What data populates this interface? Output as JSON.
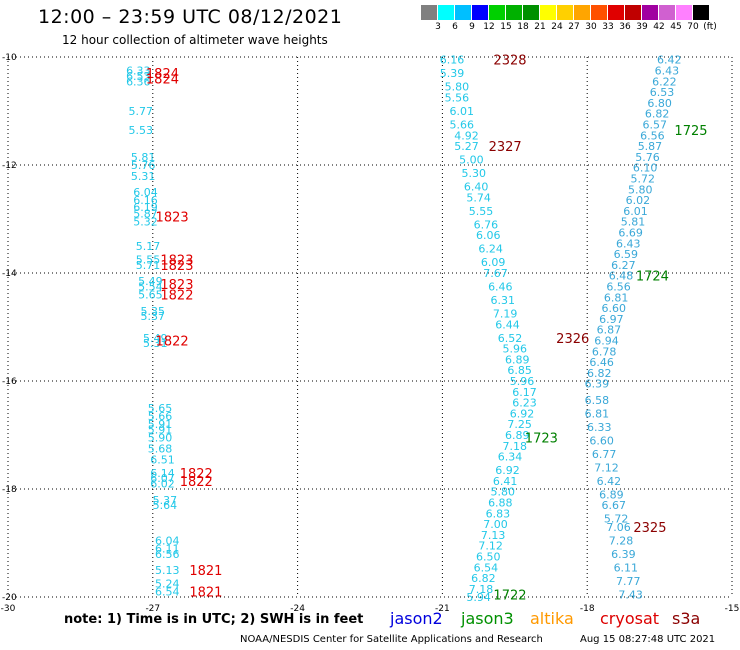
{
  "header": {
    "title": "12:00 – 23:59 UTC 08/12/2021",
    "subtitle": "12 hour collection of altimeter wave heights"
  },
  "colorbar": {
    "colors": [
      "#808080",
      "#00ffff",
      "#00bfff",
      "#0000ff",
      "#00d000",
      "#00b000",
      "#009000",
      "#ffff00",
      "#ffd000",
      "#ffa500",
      "#ff5000",
      "#e00000",
      "#c00000",
      "#a000a0",
      "#d060d0",
      "#ff80ff",
      "#000000"
    ],
    "labels": [
      "3",
      "6",
      "9",
      "12",
      "15",
      "18",
      "21",
      "24",
      "27",
      "30",
      "33",
      "36",
      "39",
      "42",
      "45",
      "70",
      "(ft)"
    ]
  },
  "axes": {
    "yticks": [
      {
        "value": -10,
        "label": "-10"
      },
      {
        "value": -12,
        "label": "-12"
      },
      {
        "value": -14,
        "label": "-14"
      },
      {
        "value": -16,
        "label": "-16"
      },
      {
        "value": -18,
        "label": "-18"
      },
      {
        "value": -20,
        "label": "-20"
      }
    ],
    "xticks": [
      {
        "value": -30,
        "label": "-30"
      },
      {
        "value": -27,
        "label": "-27"
      },
      {
        "value": -24,
        "label": "-24"
      },
      {
        "value": -21,
        "label": "-21"
      },
      {
        "value": -18,
        "label": "-18"
      },
      {
        "value": -15,
        "label": "-15"
      }
    ]
  },
  "colors": {
    "cyan_label": "#22c8e8",
    "blue_label": "#3aa8d8",
    "red_label": "#e00000",
    "darkred_label": "#8b0000",
    "green_label": "#008000"
  },
  "chart_data": {
    "type": "scatter",
    "xlim": [
      -30,
      -15
    ],
    "ylim": [
      -20,
      -10
    ],
    "wave_heights": [
      {
        "lon": -27.3,
        "lat": -10.25,
        "v": "6.33",
        "c": "cyan_label"
      },
      {
        "lon": -27.3,
        "lat": -10.35,
        "v": "6.53",
        "c": "cyan_label"
      },
      {
        "lon": -27.3,
        "lat": -10.45,
        "v": "6.36",
        "c": "cyan_label"
      },
      {
        "lon": -27.25,
        "lat": -11.0,
        "v": "5.77",
        "c": "cyan_label"
      },
      {
        "lon": -27.25,
        "lat": -11.35,
        "v": "5.53",
        "c": "cyan_label"
      },
      {
        "lon": -27.2,
        "lat": -11.85,
        "v": "5.81",
        "c": "cyan_label"
      },
      {
        "lon": -27.2,
        "lat": -12.0,
        "v": "5.76",
        "c": "cyan_label"
      },
      {
        "lon": -27.2,
        "lat": -12.2,
        "v": "5.31",
        "c": "cyan_label"
      },
      {
        "lon": -27.15,
        "lat": -12.5,
        "v": "6.04",
        "c": "cyan_label"
      },
      {
        "lon": -27.15,
        "lat": -12.65,
        "v": "6.16",
        "c": "cyan_label"
      },
      {
        "lon": -27.15,
        "lat": -12.78,
        "v": "6.19",
        "c": "cyan_label"
      },
      {
        "lon": -27.15,
        "lat": -12.9,
        "v": "5.87",
        "c": "cyan_label"
      },
      {
        "lon": -27.15,
        "lat": -13.05,
        "v": "5.32",
        "c": "cyan_label"
      },
      {
        "lon": -27.1,
        "lat": -13.5,
        "v": "5.17",
        "c": "cyan_label"
      },
      {
        "lon": -27.1,
        "lat": -13.75,
        "v": "5.55",
        "c": "cyan_label"
      },
      {
        "lon": -27.1,
        "lat": -13.85,
        "v": "5.71",
        "c": "cyan_label"
      },
      {
        "lon": -27.05,
        "lat": -14.15,
        "v": "5.49",
        "c": "cyan_label"
      },
      {
        "lon": -27.05,
        "lat": -14.25,
        "v": "5.54",
        "c": "cyan_label"
      },
      {
        "lon": -27.05,
        "lat": -14.4,
        "v": "5.65",
        "c": "cyan_label"
      },
      {
        "lon": -27.0,
        "lat": -14.7,
        "v": "5.35",
        "c": "cyan_label"
      },
      {
        "lon": -27.0,
        "lat": -14.8,
        "v": "5.37",
        "c": "cyan_label"
      },
      {
        "lon": -26.95,
        "lat": -15.2,
        "v": "5.49",
        "c": "cyan_label"
      },
      {
        "lon": -26.95,
        "lat": -15.3,
        "v": "5.31",
        "c": "cyan_label"
      },
      {
        "lon": -26.85,
        "lat": -16.5,
        "v": "5.65",
        "c": "cyan_label"
      },
      {
        "lon": -26.85,
        "lat": -16.65,
        "v": "5.66",
        "c": "cyan_label"
      },
      {
        "lon": -26.85,
        "lat": -16.8,
        "v": "5.91",
        "c": "cyan_label"
      },
      {
        "lon": -26.85,
        "lat": -16.9,
        "v": "5.91",
        "c": "cyan_label"
      },
      {
        "lon": -26.85,
        "lat": -17.05,
        "v": "5.90",
        "c": "cyan_label"
      },
      {
        "lon": -26.85,
        "lat": -17.25,
        "v": "5.68",
        "c": "cyan_label"
      },
      {
        "lon": -26.8,
        "lat": -17.45,
        "v": "6.51",
        "c": "cyan_label"
      },
      {
        "lon": -26.8,
        "lat": -17.7,
        "v": "6.14",
        "c": "cyan_label"
      },
      {
        "lon": -26.8,
        "lat": -17.8,
        "v": "6.07",
        "c": "cyan_label"
      },
      {
        "lon": -26.8,
        "lat": -17.9,
        "v": "6.02",
        "c": "cyan_label"
      },
      {
        "lon": -26.75,
        "lat": -18.2,
        "v": "5.37",
        "c": "cyan_label"
      },
      {
        "lon": -26.75,
        "lat": -18.3,
        "v": "5.64",
        "c": "cyan_label"
      },
      {
        "lon": -26.7,
        "lat": -18.95,
        "v": "6.04",
        "c": "cyan_label"
      },
      {
        "lon": -26.7,
        "lat": -19.1,
        "v": "6.11",
        "c": "cyan_label"
      },
      {
        "lon": -26.7,
        "lat": -19.2,
        "v": "6.56",
        "c": "cyan_label"
      },
      {
        "lon": -26.7,
        "lat": -19.5,
        "v": "5.13",
        "c": "cyan_label"
      },
      {
        "lon": -26.7,
        "lat": -19.75,
        "v": "5.24",
        "c": "cyan_label"
      },
      {
        "lon": -26.7,
        "lat": -19.9,
        "v": "6.54",
        "c": "cyan_label"
      },
      {
        "lon": -20.8,
        "lat": -10.05,
        "v": "6.16",
        "c": "cyan_label"
      },
      {
        "lon": -20.8,
        "lat": -10.3,
        "v": "5.39",
        "c": "cyan_label"
      },
      {
        "lon": -20.7,
        "lat": -10.55,
        "v": "5.80",
        "c": "cyan_label"
      },
      {
        "lon": -20.7,
        "lat": -10.75,
        "v": "5.56",
        "c": "cyan_label"
      },
      {
        "lon": -20.6,
        "lat": -11.0,
        "v": "6.01",
        "c": "cyan_label"
      },
      {
        "lon": -20.6,
        "lat": -11.25,
        "v": "5.66",
        "c": "cyan_label"
      },
      {
        "lon": -20.5,
        "lat": -11.45,
        "v": "4.92",
        "c": "cyan_label"
      },
      {
        "lon": -20.5,
        "lat": -11.65,
        "v": "5.27",
        "c": "cyan_label"
      },
      {
        "lon": -20.4,
        "lat": -11.9,
        "v": "5.00",
        "c": "cyan_label"
      },
      {
        "lon": -20.35,
        "lat": -12.15,
        "v": "5.30",
        "c": "cyan_label"
      },
      {
        "lon": -20.3,
        "lat": -12.4,
        "v": "6.40",
        "c": "cyan_label"
      },
      {
        "lon": -20.25,
        "lat": -12.6,
        "v": "5.74",
        "c": "cyan_label"
      },
      {
        "lon": -20.2,
        "lat": -12.85,
        "v": "5.55",
        "c": "cyan_label"
      },
      {
        "lon": -20.1,
        "lat": -13.1,
        "v": "6.76",
        "c": "cyan_label"
      },
      {
        "lon": -20.05,
        "lat": -13.3,
        "v": "6.06",
        "c": "cyan_label"
      },
      {
        "lon": -20.0,
        "lat": -13.55,
        "v": "6.24",
        "c": "cyan_label"
      },
      {
        "lon": -19.95,
        "lat": -13.8,
        "v": "6.09",
        "c": "cyan_label"
      },
      {
        "lon": -19.9,
        "lat": -14.0,
        "v": "7.67",
        "c": "cyan_label"
      },
      {
        "lon": -19.8,
        "lat": -14.25,
        "v": "6.46",
        "c": "cyan_label"
      },
      {
        "lon": -19.75,
        "lat": -14.5,
        "v": "6.31",
        "c": "cyan_label"
      },
      {
        "lon": -19.7,
        "lat": -14.75,
        "v": "7.19",
        "c": "cyan_label"
      },
      {
        "lon": -19.65,
        "lat": -14.95,
        "v": "6.44",
        "c": "cyan_label"
      },
      {
        "lon": -19.6,
        "lat": -15.2,
        "v": "6.52",
        "c": "cyan_label"
      },
      {
        "lon": -19.5,
        "lat": -15.4,
        "v": "5.96",
        "c": "cyan_label"
      },
      {
        "lon": -19.45,
        "lat": -15.6,
        "v": "6.89",
        "c": "cyan_label"
      },
      {
        "lon": -19.4,
        "lat": -15.8,
        "v": "6.85",
        "c": "cyan_label"
      },
      {
        "lon": -19.35,
        "lat": -16.0,
        "v": "5.96",
        "c": "cyan_label"
      },
      {
        "lon": -19.3,
        "lat": -16.2,
        "v": "6.17",
        "c": "cyan_label"
      },
      {
        "lon": -19.3,
        "lat": -16.4,
        "v": "6.23",
        "c": "cyan_label"
      },
      {
        "lon": -19.35,
        "lat": -16.6,
        "v": "6.92",
        "c": "cyan_label"
      },
      {
        "lon": -19.4,
        "lat": -16.8,
        "v": "7.25",
        "c": "cyan_label"
      },
      {
        "lon": -19.45,
        "lat": -17.0,
        "v": "6.89",
        "c": "cyan_label"
      },
      {
        "lon": -19.5,
        "lat": -17.2,
        "v": "7.18",
        "c": "cyan_label"
      },
      {
        "lon": -19.6,
        "lat": -17.4,
        "v": "6.34",
        "c": "cyan_label"
      },
      {
        "lon": -19.65,
        "lat": -17.65,
        "v": "6.92",
        "c": "cyan_label"
      },
      {
        "lon": -19.7,
        "lat": -17.85,
        "v": "6.41",
        "c": "cyan_label"
      },
      {
        "lon": -19.75,
        "lat": -18.05,
        "v": "5.80",
        "c": "cyan_label"
      },
      {
        "lon": -19.8,
        "lat": -18.25,
        "v": "6.88",
        "c": "cyan_label"
      },
      {
        "lon": -19.85,
        "lat": -18.45,
        "v": "6.83",
        "c": "cyan_label"
      },
      {
        "lon": -19.9,
        "lat": -18.65,
        "v": "7.00",
        "c": "cyan_label"
      },
      {
        "lon": -19.95,
        "lat": -18.85,
        "v": "7.13",
        "c": "cyan_label"
      },
      {
        "lon": -20.0,
        "lat": -19.05,
        "v": "7.12",
        "c": "cyan_label"
      },
      {
        "lon": -20.05,
        "lat": -19.25,
        "v": "6.50",
        "c": "cyan_label"
      },
      {
        "lon": -20.1,
        "lat": -19.45,
        "v": "6.54",
        "c": "cyan_label"
      },
      {
        "lon": -20.15,
        "lat": -19.65,
        "v": "6.82",
        "c": "cyan_label"
      },
      {
        "lon": -20.2,
        "lat": -19.85,
        "v": "7.18",
        "c": "cyan_label"
      },
      {
        "lon": -20.25,
        "lat": -20.0,
        "v": "5.94",
        "c": "cyan_label"
      },
      {
        "lon": -16.3,
        "lat": -10.05,
        "v": "6.42",
        "c": "blue_label"
      },
      {
        "lon": -16.35,
        "lat": -10.25,
        "v": "6.43",
        "c": "blue_label"
      },
      {
        "lon": -16.4,
        "lat": -10.45,
        "v": "6.22",
        "c": "blue_label"
      },
      {
        "lon": -16.45,
        "lat": -10.65,
        "v": "6.53",
        "c": "blue_label"
      },
      {
        "lon": -16.5,
        "lat": -10.85,
        "v": "6.80",
        "c": "blue_label"
      },
      {
        "lon": -16.55,
        "lat": -11.05,
        "v": "6.82",
        "c": "blue_label"
      },
      {
        "lon": -16.6,
        "lat": -11.25,
        "v": "6.57",
        "c": "blue_label"
      },
      {
        "lon": -16.65,
        "lat": -11.45,
        "v": "6.56",
        "c": "blue_label"
      },
      {
        "lon": -16.7,
        "lat": -11.65,
        "v": "5.87",
        "c": "blue_label"
      },
      {
        "lon": -16.75,
        "lat": -11.85,
        "v": "5.76",
        "c": "blue_label"
      },
      {
        "lon": -16.8,
        "lat": -12.05,
        "v": "6.10",
        "c": "blue_label"
      },
      {
        "lon": -16.85,
        "lat": -12.25,
        "v": "5.72",
        "c": "blue_label"
      },
      {
        "lon": -16.9,
        "lat": -12.45,
        "v": "5.80",
        "c": "blue_label"
      },
      {
        "lon": -16.95,
        "lat": -12.65,
        "v": "6.02",
        "c": "blue_label"
      },
      {
        "lon": -17.0,
        "lat": -12.85,
        "v": "6.01",
        "c": "blue_label"
      },
      {
        "lon": -17.05,
        "lat": -13.05,
        "v": "5.81",
        "c": "blue_label"
      },
      {
        "lon": -17.1,
        "lat": -13.25,
        "v": "6.69",
        "c": "blue_label"
      },
      {
        "lon": -17.15,
        "lat": -13.45,
        "v": "6.43",
        "c": "blue_label"
      },
      {
        "lon": -17.2,
        "lat": -13.65,
        "v": "6.59",
        "c": "blue_label"
      },
      {
        "lon": -17.25,
        "lat": -13.85,
        "v": "6.27",
        "c": "blue_label"
      },
      {
        "lon": -17.3,
        "lat": -14.05,
        "v": "6.48",
        "c": "blue_label"
      },
      {
        "lon": -17.35,
        "lat": -14.25,
        "v": "6.56",
        "c": "blue_label"
      },
      {
        "lon": -17.4,
        "lat": -14.45,
        "v": "6.81",
        "c": "blue_label"
      },
      {
        "lon": -17.45,
        "lat": -14.65,
        "v": "6.60",
        "c": "blue_label"
      },
      {
        "lon": -17.5,
        "lat": -14.85,
        "v": "6.97",
        "c": "blue_label"
      },
      {
        "lon": -17.55,
        "lat": -15.05,
        "v": "6.87",
        "c": "blue_label"
      },
      {
        "lon": -17.6,
        "lat": -15.25,
        "v": "6.94",
        "c": "blue_label"
      },
      {
        "lon": -17.65,
        "lat": -15.45,
        "v": "6.78",
        "c": "blue_label"
      },
      {
        "lon": -17.7,
        "lat": -15.65,
        "v": "6.46",
        "c": "blue_label"
      },
      {
        "lon": -17.75,
        "lat": -15.85,
        "v": "6.82",
        "c": "blue_label"
      },
      {
        "lon": -17.8,
        "lat": -16.05,
        "v": "6.39",
        "c": "blue_label"
      },
      {
        "lon": -17.8,
        "lat": -16.35,
        "v": "6.58",
        "c": "blue_label"
      },
      {
        "lon": -17.8,
        "lat": -16.6,
        "v": "6.81",
        "c": "blue_label"
      },
      {
        "lon": -17.75,
        "lat": -16.85,
        "v": "6.33",
        "c": "blue_label"
      },
      {
        "lon": -17.7,
        "lat": -17.1,
        "v": "6.60",
        "c": "blue_label"
      },
      {
        "lon": -17.65,
        "lat": -17.35,
        "v": "6.77",
        "c": "blue_label"
      },
      {
        "lon": -17.6,
        "lat": -17.6,
        "v": "7.12",
        "c": "blue_label"
      },
      {
        "lon": -17.55,
        "lat": -17.85,
        "v": "6.42",
        "c": "blue_label"
      },
      {
        "lon": -17.5,
        "lat": -18.1,
        "v": "6.89",
        "c": "blue_label"
      },
      {
        "lon": -17.45,
        "lat": -18.3,
        "v": "6.67",
        "c": "blue_label"
      },
      {
        "lon": -17.4,
        "lat": -18.55,
        "v": "5.72",
        "c": "blue_label"
      },
      {
        "lon": -17.35,
        "lat": -18.7,
        "v": "7.06",
        "c": "blue_label"
      },
      {
        "lon": -17.3,
        "lat": -18.95,
        "v": "7.28",
        "c": "blue_label"
      },
      {
        "lon": -17.25,
        "lat": -19.2,
        "v": "6.39",
        "c": "blue_label"
      },
      {
        "lon": -17.2,
        "lat": -19.45,
        "v": "6.11",
        "c": "blue_label"
      },
      {
        "lon": -17.15,
        "lat": -19.7,
        "v": "7.77",
        "c": "blue_label"
      },
      {
        "lon": -17.1,
        "lat": -19.95,
        "v": "7.43",
        "c": "blue_label"
      }
    ],
    "pass_labels": [
      {
        "lon": -26.8,
        "lat": -10.3,
        "v": "1824",
        "c": "red_label"
      },
      {
        "lon": -26.8,
        "lat": -10.4,
        "v": "1824",
        "c": "red_label"
      },
      {
        "lon": -26.6,
        "lat": -12.95,
        "v": "1823",
        "c": "red_label"
      },
      {
        "lon": -26.5,
        "lat": -13.75,
        "v": "1823",
        "c": "red_label"
      },
      {
        "lon": -26.5,
        "lat": -13.85,
        "v": "1823",
        "c": "red_label"
      },
      {
        "lon": -26.5,
        "lat": -14.2,
        "v": "1823",
        "c": "red_label"
      },
      {
        "lon": -26.5,
        "lat": -14.4,
        "v": "1822",
        "c": "red_label"
      },
      {
        "lon": -26.6,
        "lat": -15.25,
        "v": "1822",
        "c": "red_label"
      },
      {
        "lon": -26.1,
        "lat": -17.7,
        "v": "1822",
        "c": "red_label"
      },
      {
        "lon": -26.1,
        "lat": -17.85,
        "v": "1822",
        "c": "red_label"
      },
      {
        "lon": -25.9,
        "lat": -19.5,
        "v": "1821",
        "c": "red_label"
      },
      {
        "lon": -25.9,
        "lat": -19.9,
        "v": "1821",
        "c": "red_label"
      },
      {
        "lon": -19.6,
        "lat": -10.05,
        "v": "2328",
        "c": "darkred_label"
      },
      {
        "lon": -19.7,
        "lat": -11.65,
        "v": "2327",
        "c": "darkred_label"
      },
      {
        "lon": -18.3,
        "lat": -15.2,
        "v": "2326",
        "c": "darkred_label"
      },
      {
        "lon": -16.7,
        "lat": -18.7,
        "v": "2325",
        "c": "darkred_label"
      },
      {
        "lon": -15.85,
        "lat": -11.35,
        "v": "1725",
        "c": "green_label"
      },
      {
        "lon": -16.65,
        "lat": -14.05,
        "v": "1724",
        "c": "green_label"
      },
      {
        "lon": -18.95,
        "lat": -17.05,
        "v": "1723",
        "c": "green_label"
      },
      {
        "lon": -19.6,
        "lat": -19.95,
        "v": "1722",
        "c": "green_label"
      }
    ]
  },
  "note": "note: 1) Time is in UTC; 2) SWH is in feet",
  "legend": [
    {
      "label": "jason2",
      "color": "#0000dd",
      "left": 390
    },
    {
      "label": "jason3",
      "color": "#009000",
      "left": 461
    },
    {
      "label": "altika",
      "color": "#ff9900",
      "left": 530
    },
    {
      "label": "cryosat",
      "color": "#dd0000",
      "left": 600
    },
    {
      "label": "s3a",
      "color": "#8b0000",
      "left": 672
    }
  ],
  "footer": {
    "credit": "NOAA/NESDIS Center for Satellite Applications and Research",
    "timestamp": "Aug 15 08:27:48 UTC 2021"
  }
}
